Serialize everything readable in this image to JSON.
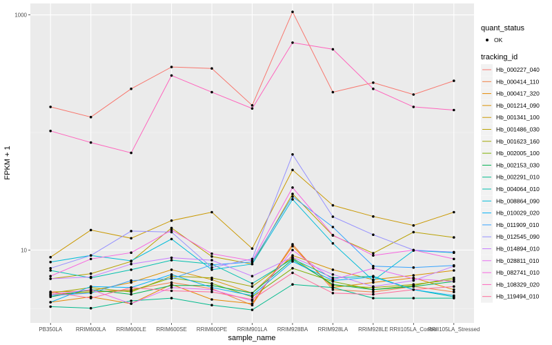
{
  "chart_data": {
    "type": "line",
    "xlabel": "sample_name",
    "ylabel": "FPKM + 1",
    "y_scale": "log10",
    "ylim": [
      2.4,
      1250
    ],
    "yticks": [
      {
        "value": 10,
        "label": "10"
      },
      {
        "value": 1000,
        "label": "1000"
      }
    ],
    "categories": [
      "PB350LA",
      "RRIM600LA",
      "RRIM600LE",
      "RRIM600SE",
      "RRIM600PE",
      "RRIM901LA",
      "RRIM928BA",
      "RRIM928LA",
      "RRIM928LE",
      "RRII105LA_Control",
      "RRII105LA_Stressed"
    ],
    "grid": true,
    "background": "#ebebeb",
    "legend": {
      "placement": "right",
      "quant_status_title": "quant_status",
      "quant_status_items": [
        "OK"
      ],
      "tracking_title": "tracking_id"
    },
    "series": [
      {
        "name": "Hb_000227_040",
        "color": "#F8766D",
        "values": [
          165,
          135,
          235,
          360,
          350,
          170,
          1060,
          220,
          265,
          210,
          275
        ]
      },
      {
        "name": "Hb_000414_110",
        "color": "#F07F42",
        "values": [
          4.1,
          4.4,
          4.6,
          5.3,
          4.7,
          3.4,
          11.2,
          4.6,
          4.4,
          4.9,
          4.4
        ]
      },
      {
        "name": "Hb_000417_320",
        "color": "#E58700",
        "values": [
          3.6,
          4.0,
          3.5,
          5.1,
          3.8,
          3.5,
          10.8,
          4.8,
          5.3,
          5.8,
          4.6
        ]
      },
      {
        "name": "Hb_001214_090",
        "color": "#D89000",
        "values": [
          4.4,
          4.5,
          5.3,
          6.8,
          5.6,
          4.3,
          9.0,
          6.8,
          5.6,
          6.1,
          6.7
        ]
      },
      {
        "name": "Hb_001341_100",
        "color": "#C99800",
        "values": [
          8.7,
          14.8,
          12.6,
          17.8,
          21.0,
          10.3,
          48.0,
          24.0,
          19.3,
          16.2,
          21.0
        ]
      },
      {
        "name": "Hb_001486_030",
        "color": "#B8A000",
        "values": [
          5.7,
          6.3,
          8.0,
          15.4,
          8.8,
          7.6,
          30.0,
          13.3,
          9.4,
          14.2,
          12.8
        ]
      },
      {
        "name": "Hb_001623_160",
        "color": "#A3A500",
        "values": [
          4.3,
          4.8,
          4.4,
          6.0,
          5.8,
          4.9,
          8.6,
          5.0,
          4.8,
          5.1,
          5.6
        ]
      },
      {
        "name": "Hb_002005_100",
        "color": "#7CAE00",
        "values": [
          4.2,
          4.4,
          4.5,
          5.8,
          5.2,
          4.0,
          7.0,
          5.4,
          4.6,
          5.0,
          5.8
        ]
      },
      {
        "name": "Hb_002153_030",
        "color": "#00B050",
        "values": [
          4.0,
          4.6,
          4.2,
          5.0,
          5.0,
          4.3,
          8.3,
          5.1,
          4.6,
          4.9,
          5.4
        ]
      },
      {
        "name": "Hb_002291_010",
        "color": "#00BA8C",
        "values": [
          3.3,
          3.2,
          3.7,
          3.9,
          3.4,
          3.1,
          5.1,
          4.8,
          3.9,
          3.9,
          3.9
        ]
      },
      {
        "name": "Hb_004064_010",
        "color": "#00BFAE",
        "values": [
          6.7,
          5.8,
          6.8,
          8.2,
          7.6,
          5.2,
          8.4,
          5.8,
          6.0,
          4.6,
          4.0
        ]
      },
      {
        "name": "Hb_008864_090",
        "color": "#00BCD8",
        "values": [
          7.9,
          9.0,
          8.1,
          12.4,
          6.8,
          7.6,
          27.0,
          11.4,
          5.5,
          9.9,
          9.5
        ]
      },
      {
        "name": "Hb_010029_020",
        "color": "#00B0F6",
        "values": [
          3.6,
          4.9,
          4.8,
          6.2,
          4.8,
          4.1,
          8.0,
          5.5,
          5.9,
          4.6,
          4.1
        ]
      },
      {
        "name": "Hb_011909_010",
        "color": "#35A2FF",
        "values": [
          4.1,
          4.3,
          5.5,
          5.7,
          7.5,
          7.9,
          28.5,
          15.7,
          7.3,
          7.1,
          7.4
        ]
      },
      {
        "name": "Hb_012545_090",
        "color": "#9590FF",
        "values": [
          7.0,
          9.0,
          14.5,
          14.2,
          7.1,
          8.4,
          65.0,
          19.2,
          13.5,
          10.0,
          9.6
        ]
      },
      {
        "name": "Hb_014894_010",
        "color": "#C77CFF",
        "values": [
          5.7,
          5.9,
          7.6,
          8.6,
          8.2,
          6.0,
          8.7,
          6.2,
          4.9,
          5.5,
          7.3
        ]
      },
      {
        "name": "Hb_028811_010",
        "color": "#E76BF3",
        "values": [
          4.2,
          4.6,
          3.5,
          4.8,
          4.6,
          3.7,
          10.0,
          5.6,
          7.0,
          5.7,
          5.4
        ]
      },
      {
        "name": "Hb_082741_010",
        "color": "#F763E0",
        "values": [
          6.0,
          8.4,
          9.5,
          14.8,
          9.3,
          8.1,
          34.0,
          13.4,
          9.0,
          10.0,
          8.4
        ]
      },
      {
        "name": "Hb_108329_020",
        "color": "#FF62BC",
        "values": [
          103,
          82,
          67,
          305,
          220,
          160,
          580,
          510,
          235,
          165,
          155
        ]
      },
      {
        "name": "Hb_119494_010",
        "color": "#FF6A98",
        "values": [
          4.4,
          3.9,
          4.8,
          4.5,
          4.4,
          3.8,
          6.4,
          4.3,
          4.2,
          4.6,
          4.9
        ]
      }
    ]
  }
}
